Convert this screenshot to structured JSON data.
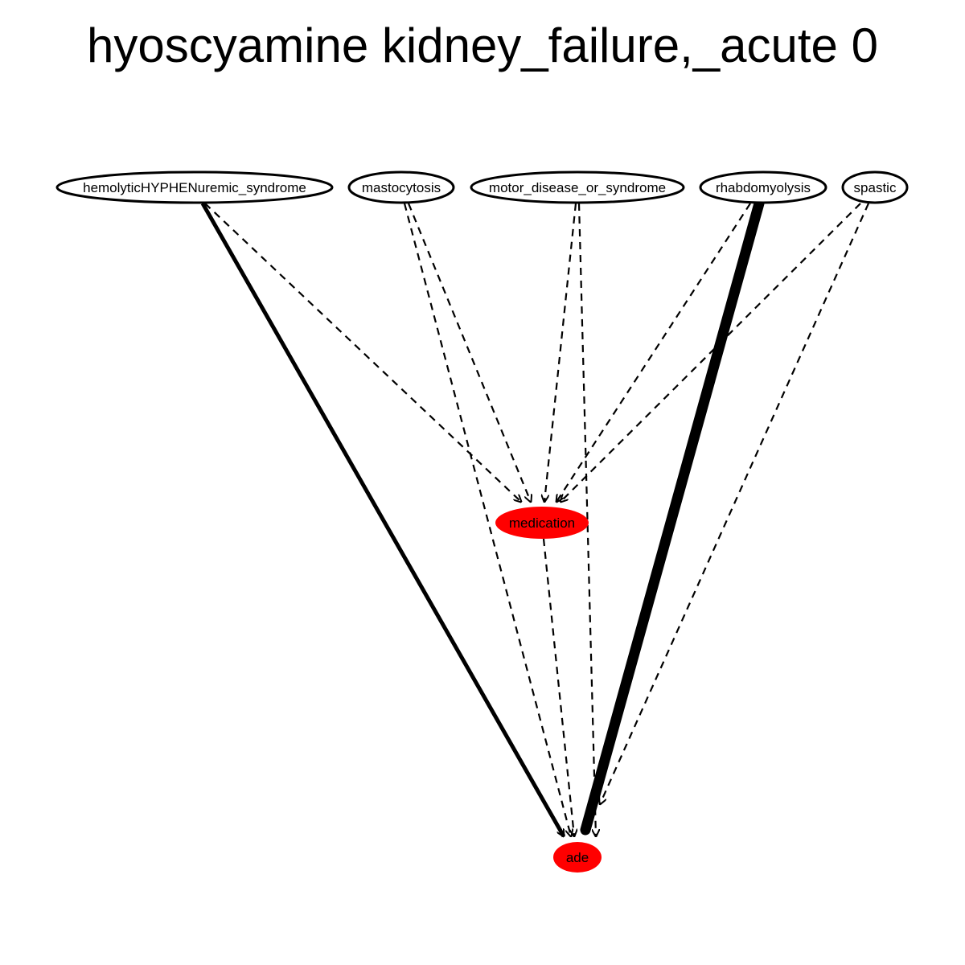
{
  "title": "hyoscyamine kidney_failure,_acute 0",
  "colors": {
    "highlight_node": "#ff0000",
    "plain_node": "#ffffff",
    "stroke": "#000000"
  },
  "nodes": [
    {
      "id": "hemolytic",
      "label": "hemolyticHYPHENuremic_syndrome",
      "highlight": false
    },
    {
      "id": "mastocytosis",
      "label": "mastocytosis",
      "highlight": false
    },
    {
      "id": "motor",
      "label": "motor_disease_or_syndrome",
      "highlight": false
    },
    {
      "id": "rhabdo",
      "label": "rhabdomyolysis",
      "highlight": false
    },
    {
      "id": "spastic",
      "label": "spastic",
      "highlight": false
    },
    {
      "id": "medication",
      "label": "medication",
      "highlight": true
    },
    {
      "id": "ade",
      "label": "ade",
      "highlight": true
    }
  ],
  "edges": [
    {
      "from": "hemolytic",
      "to": "medication",
      "style": "dashed",
      "weight": 1
    },
    {
      "from": "hemolytic",
      "to": "ade",
      "style": "solid",
      "weight": 2
    },
    {
      "from": "mastocytosis",
      "to": "medication",
      "style": "dashed",
      "weight": 1
    },
    {
      "from": "mastocytosis",
      "to": "ade",
      "style": "dashed",
      "weight": 1
    },
    {
      "from": "motor",
      "to": "medication",
      "style": "dashed",
      "weight": 1
    },
    {
      "from": "motor",
      "to": "ade",
      "style": "dashed",
      "weight": 1
    },
    {
      "from": "rhabdo",
      "to": "medication",
      "style": "dashed",
      "weight": 1
    },
    {
      "from": "rhabdo",
      "to": "ade",
      "style": "solid",
      "weight": 6
    },
    {
      "from": "spastic",
      "to": "medication",
      "style": "dashed",
      "weight": 1
    },
    {
      "from": "spastic",
      "to": "ade",
      "style": "dashed",
      "weight": 1
    },
    {
      "from": "medication",
      "to": "ade",
      "style": "dashed",
      "weight": 1
    }
  ]
}
